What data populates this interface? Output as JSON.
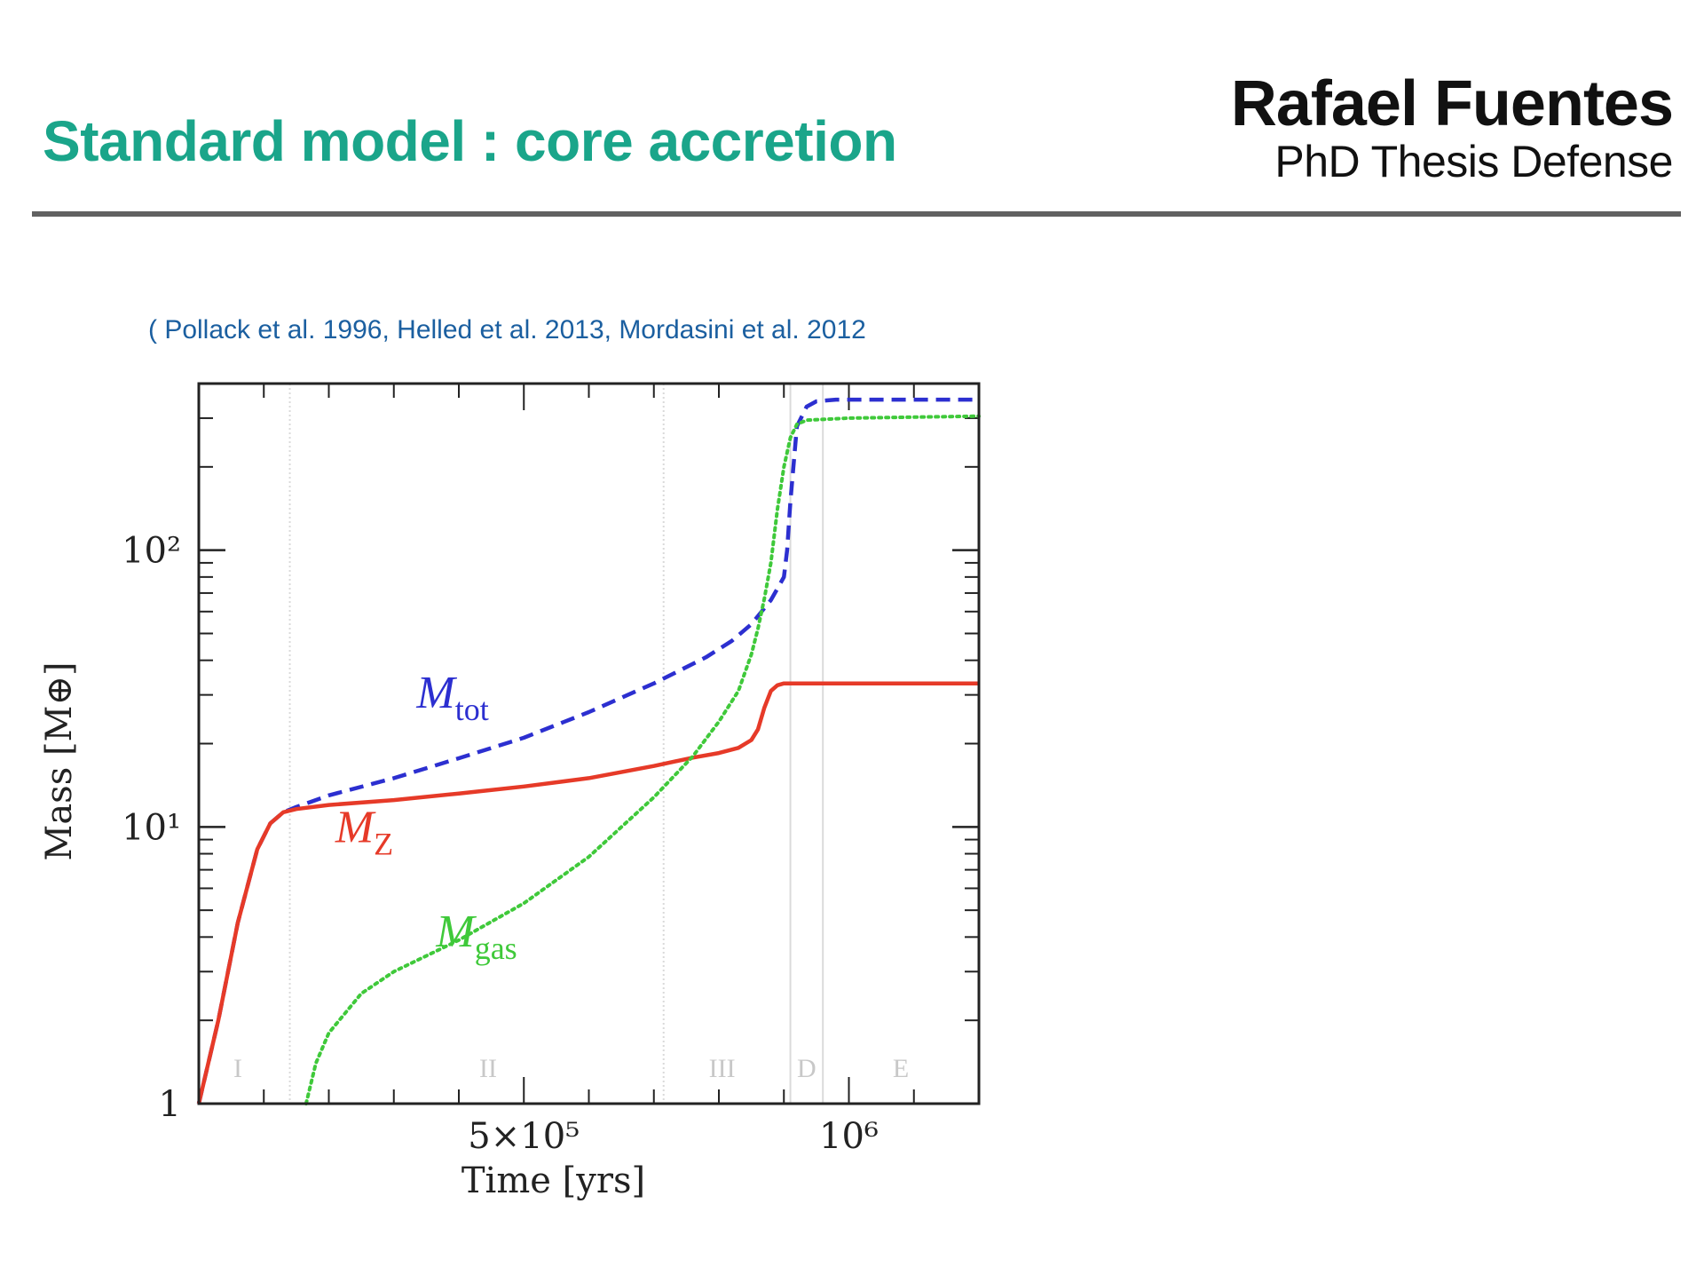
{
  "slide": {
    "title": "Standard model : core accretion",
    "author_name": "Rafael Fuentes",
    "author_subtitle": "PhD Thesis Defense",
    "citation": "( Pollack et al. 1996, Helled et al. 2013, Mordasini et al. 2012"
  },
  "chart_data": {
    "type": "line",
    "xlabel": "Time [yrs]",
    "ylabel": "Mass [M⊕]",
    "xlim": [
      0,
      1200000
    ],
    "ylim": [
      1,
      400
    ],
    "yscale": "log",
    "grid": false,
    "legend": "none",
    "x_ticks": [
      {
        "value": 500000,
        "label": "5×10⁵"
      },
      {
        "value": 1000000,
        "label": "10⁶"
      }
    ],
    "y_ticks": [
      {
        "value": 1,
        "label": "1"
      },
      {
        "value": 10,
        "label": "10¹"
      },
      {
        "value": 100,
        "label": "10²"
      }
    ],
    "phase_boundaries": [
      140000,
      715000,
      910000,
      960000
    ],
    "phases": [
      {
        "label": "I",
        "x": 60000
      },
      {
        "label": "II",
        "x": 445000
      },
      {
        "label": "III",
        "x": 805000
      },
      {
        "label": "D",
        "x": 935000
      },
      {
        "label": "E",
        "x": 1080000
      }
    ],
    "series": [
      {
        "name": "M",
        "name_sub": "tot",
        "color": "#2c2fd0",
        "style": "dashed",
        "label_position": {
          "x": 335000,
          "y": 27
        },
        "x": [
          0,
          30000,
          60000,
          90000,
          110000,
          130000,
          150000,
          200000,
          300000,
          400000,
          500000,
          600000,
          700000,
          780000,
          820000,
          850000,
          880000,
          900000,
          905000,
          910000,
          920000,
          935000,
          950000,
          980000,
          1050000,
          1200000
        ],
        "y": [
          1,
          2.0,
          4.5,
          8.3,
          10.3,
          11.3,
          11.8,
          13.0,
          15.0,
          17.7,
          21,
          26,
          33,
          41,
          47,
          54,
          66,
          80,
          100,
          150,
          280,
          330,
          345,
          350,
          350,
          350
        ]
      },
      {
        "name": "M",
        "name_sub": "Z",
        "color": "#e63a28",
        "style": "solid",
        "label_position": {
          "x": 210000,
          "y": 8.8
        },
        "x": [
          0,
          30000,
          60000,
          90000,
          110000,
          130000,
          150000,
          200000,
          300000,
          400000,
          500000,
          600000,
          700000,
          760000,
          800000,
          830000,
          850000,
          860000,
          870000,
          880000,
          890000,
          900000,
          915000,
          925000,
          1000000,
          1200000
        ],
        "y": [
          1,
          2.0,
          4.5,
          8.3,
          10.3,
          11.3,
          11.6,
          12.0,
          12.5,
          13.2,
          14.0,
          15.0,
          16.6,
          17.8,
          18.5,
          19.3,
          20.6,
          22.5,
          27,
          31,
          32.5,
          33,
          33,
          33,
          33,
          33
        ]
      },
      {
        "name": "M",
        "name_sub": "gas",
        "color": "#3fc93a",
        "style": "dotted",
        "label_position": {
          "x": 365000,
          "y": 3.7
        },
        "x": [
          165000,
          180000,
          200000,
          250000,
          300000,
          400000,
          500000,
          600000,
          700000,
          760000,
          800000,
          830000,
          850000,
          860000,
          870000,
          880000,
          890000,
          900000,
          910000,
          920000,
          935000,
          1000000,
          1200000
        ],
        "y": [
          1.0,
          1.4,
          1.8,
          2.5,
          3.0,
          3.9,
          5.3,
          7.8,
          12.8,
          18,
          24,
          31,
          42,
          52,
          67,
          90,
          140,
          200,
          255,
          285,
          295,
          300,
          305
        ]
      }
    ]
  }
}
